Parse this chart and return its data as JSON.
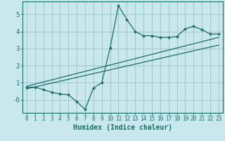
{
  "xlabel": "Humidex (Indice chaleur)",
  "bg_color": "#c8e8ee",
  "grid_color": "#a0c8cc",
  "line_color": "#1a6e68",
  "xlim": [
    -0.5,
    23.5
  ],
  "ylim": [
    -0.75,
    5.75
  ],
  "xticks": [
    0,
    1,
    2,
    3,
    4,
    5,
    6,
    7,
    8,
    9,
    10,
    11,
    12,
    13,
    14,
    15,
    16,
    17,
    18,
    19,
    20,
    21,
    22,
    23
  ],
  "yticks": [
    0,
    1,
    2,
    3,
    4,
    5
  ],
  "ytick_labels": [
    "-0",
    "1",
    "2",
    "3",
    "4",
    "5"
  ],
  "data_x": [
    0,
    1,
    2,
    3,
    4,
    5,
    6,
    7,
    8,
    9,
    10,
    11,
    12,
    13,
    14,
    15,
    16,
    17,
    18,
    19,
    20,
    21,
    22,
    23
  ],
  "data_y": [
    0.75,
    0.75,
    0.6,
    0.45,
    0.35,
    0.3,
    -0.1,
    -0.55,
    0.7,
    1.0,
    3.05,
    5.5,
    4.7,
    4.0,
    3.75,
    3.75,
    3.65,
    3.65,
    3.7,
    4.15,
    4.3,
    4.1,
    3.85,
    3.85
  ],
  "line1_x": [
    0,
    23
  ],
  "line1_y": [
    0.8,
    3.65
  ],
  "line2_x": [
    0,
    23
  ],
  "line2_y": [
    0.65,
    3.2
  ],
  "tick_fontsize": 5.5,
  "xlabel_fontsize": 7.0
}
